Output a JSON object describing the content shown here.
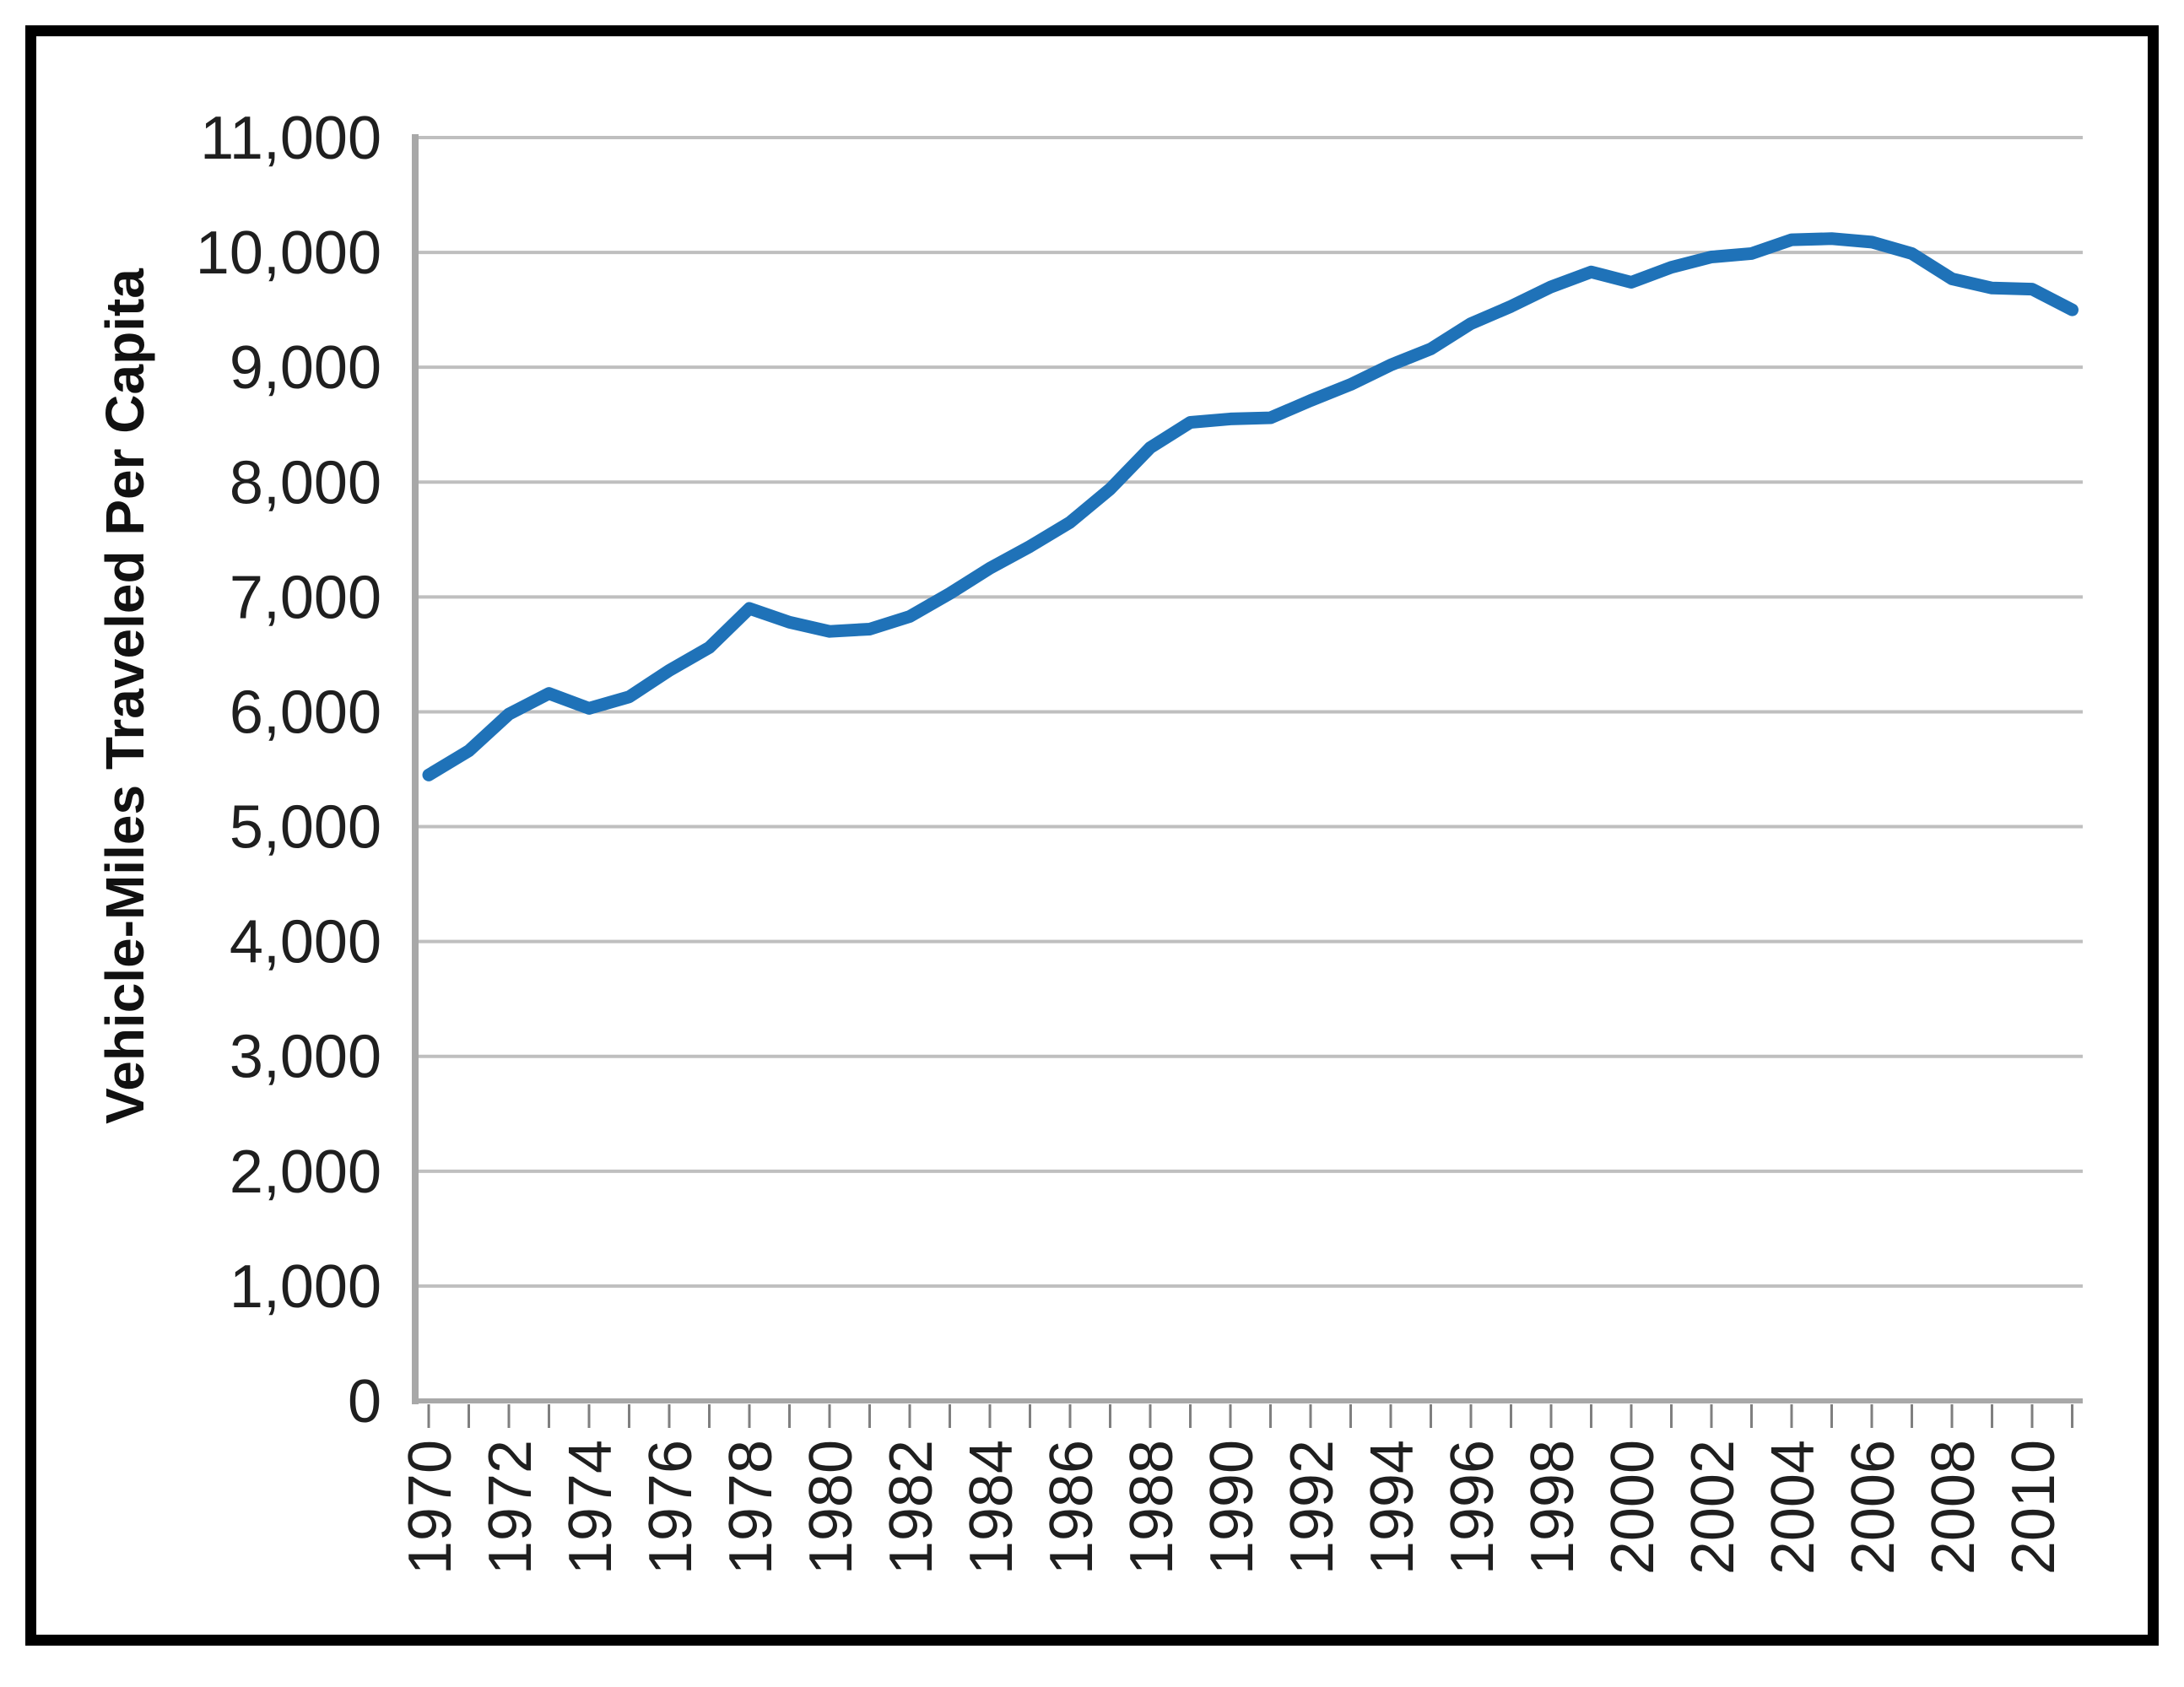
{
  "chart_data": {
    "type": "line",
    "title": "",
    "xlabel": "",
    "ylabel": "Vehicle-Miles Traveled Per Capita",
    "legend": "none",
    "grid": "horizontal",
    "ylim": [
      0,
      11000
    ],
    "x": [
      1970,
      1971,
      1972,
      1973,
      1974,
      1975,
      1976,
      1977,
      1978,
      1979,
      1980,
      1981,
      1982,
      1983,
      1984,
      1985,
      1986,
      1987,
      1988,
      1989,
      1990,
      1991,
      1992,
      1993,
      1994,
      1995,
      1996,
      1997,
      1998,
      1999,
      2000,
      2001,
      2002,
      2003,
      2004,
      2005,
      2006,
      2007,
      2008,
      2009,
      2010,
      2011
    ],
    "series": [
      {
        "name": "Vehicle-Miles Traveled Per Capita",
        "values": [
          5450,
          5660,
          5980,
          6160,
          6030,
          6130,
          6360,
          6560,
          6900,
          6780,
          6700,
          6720,
          6830,
          7030,
          7250,
          7440,
          7650,
          7940,
          8300,
          8520,
          8550,
          8560,
          8710,
          8850,
          9020,
          9160,
          9380,
          9530,
          9700,
          9830,
          9740,
          9870,
          9960,
          9990,
          10110,
          10120,
          10090,
          9990,
          9770,
          9690,
          9680,
          9500
        ]
      }
    ],
    "x_tick_labels": [
      "1970",
      "1972",
      "1974",
      "1976",
      "1978",
      "1980",
      "1982",
      "1984",
      "1986",
      "1988",
      "1990",
      "1992",
      "1994",
      "1996",
      "1998",
      "2000",
      "2002",
      "2004",
      "2006",
      "2008",
      "2010"
    ],
    "y_tick_values": [
      0,
      1000,
      2000,
      3000,
      4000,
      5000,
      6000,
      7000,
      8000,
      9000,
      10000,
      11000
    ],
    "y_tick_labels": [
      "0",
      "1,000",
      "2,000",
      "3,000",
      "4,000",
      "5,000",
      "6,000",
      "7,000",
      "8,000",
      "9,000",
      "10,000",
      "11,000"
    ],
    "colors": {
      "line": "#1F72B8",
      "gridline": "#BFBFBF",
      "axis": "#A8A8A8",
      "tick": "#7F7F7F",
      "text": "#1F1F1F",
      "border": "#000000"
    }
  }
}
